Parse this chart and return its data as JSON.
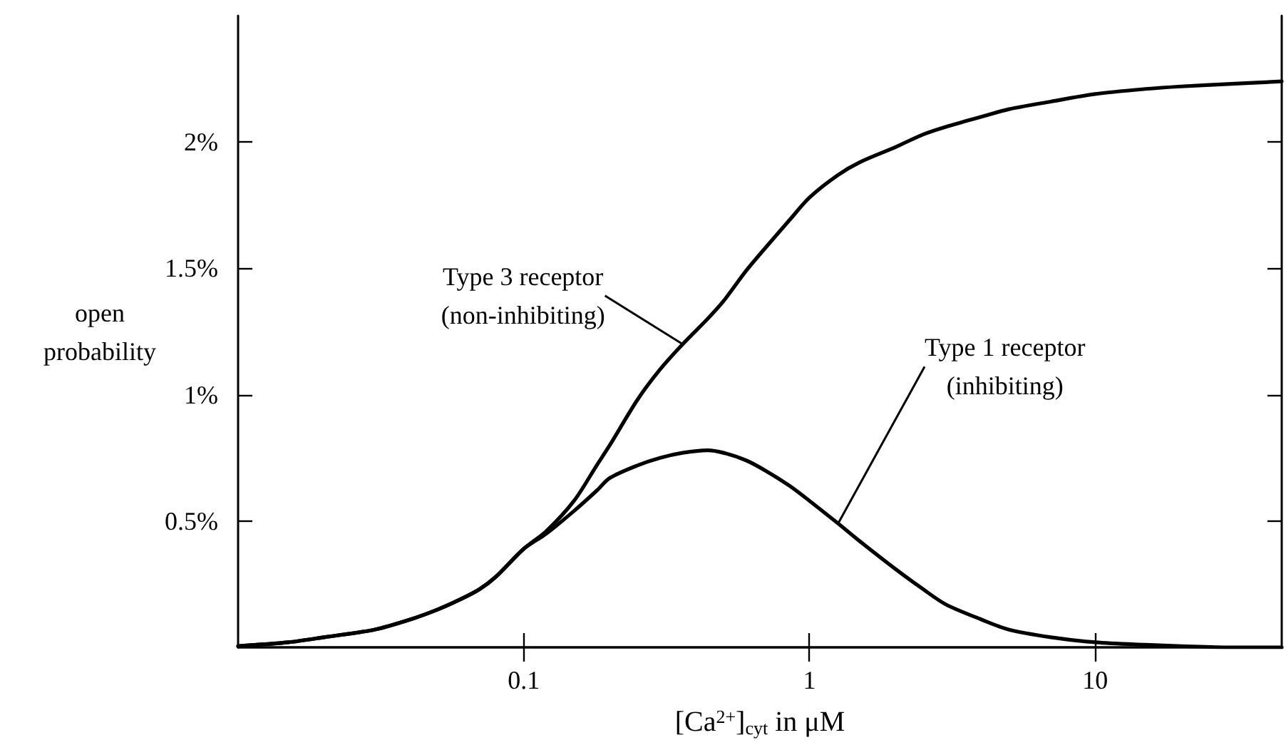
{
  "chart_data": {
    "type": "line",
    "xlabel": "[Ca$^{2+}$]$_{cyt}$ in μM",
    "ylabel": "open\nprobability",
    "log": "x",
    "xlim": [
      0.01,
      45
    ],
    "xticks": [
      0.1,
      1,
      10
    ],
    "ylim": [
      0,
      2.5
    ],
    "yticks": [
      {
        "value": 0.5,
        "label": "0.5%"
      },
      {
        "value": 1,
        "label": "1%"
      },
      {
        "value": 1.5,
        "label": "1.5%"
      },
      {
        "value": 2,
        "label": "2%"
      }
    ],
    "grid": false,
    "x": [
      0.01,
      0.015,
      0.02,
      0.03,
      0.04,
      0.05,
      0.06,
      0.07,
      0.08,
      0.1,
      0.12,
      0.15,
      0.18,
      0.2,
      0.25,
      0.3,
      0.36,
      0.44,
      0.5,
      0.6,
      0.7,
      0.85,
      1,
      1.26,
      1.5,
      2,
      2.5,
      3,
      4,
      5,
      7,
      10,
      15,
      20,
      30,
      45
    ],
    "series": [
      {
        "name": "Type 3 receptor\n(non-inhibiting)",
        "color": "#000000",
        "values": [
          0.005,
          0.02,
          0.04,
          0.07,
          0.11,
          0.15,
          0.19,
          0.23,
          0.28,
          0.39,
          0.46,
          0.58,
          0.72,
          0.8,
          0.98,
          1.1,
          1.2,
          1.3,
          1.37,
          1.49,
          1.58,
          1.69,
          1.78,
          1.87,
          1.92,
          1.98,
          2.03,
          2.06,
          2.1,
          2.13,
          2.16,
          2.19,
          2.21,
          2.22,
          2.23,
          2.24
        ]
      },
      {
        "name": "Type 1 receptor\n(inhibiting)",
        "color": "#000000",
        "values": [
          0.005,
          0.02,
          0.04,
          0.07,
          0.11,
          0.15,
          0.19,
          0.23,
          0.28,
          0.39,
          0.45,
          0.54,
          0.62,
          0.67,
          0.72,
          0.75,
          0.77,
          0.78,
          0.77,
          0.74,
          0.7,
          0.64,
          0.58,
          0.49,
          0.42,
          0.31,
          0.23,
          0.17,
          0.11,
          0.07,
          0.04,
          0.02,
          0.01,
          0.005,
          0,
          0
        ]
      }
    ]
  }
}
